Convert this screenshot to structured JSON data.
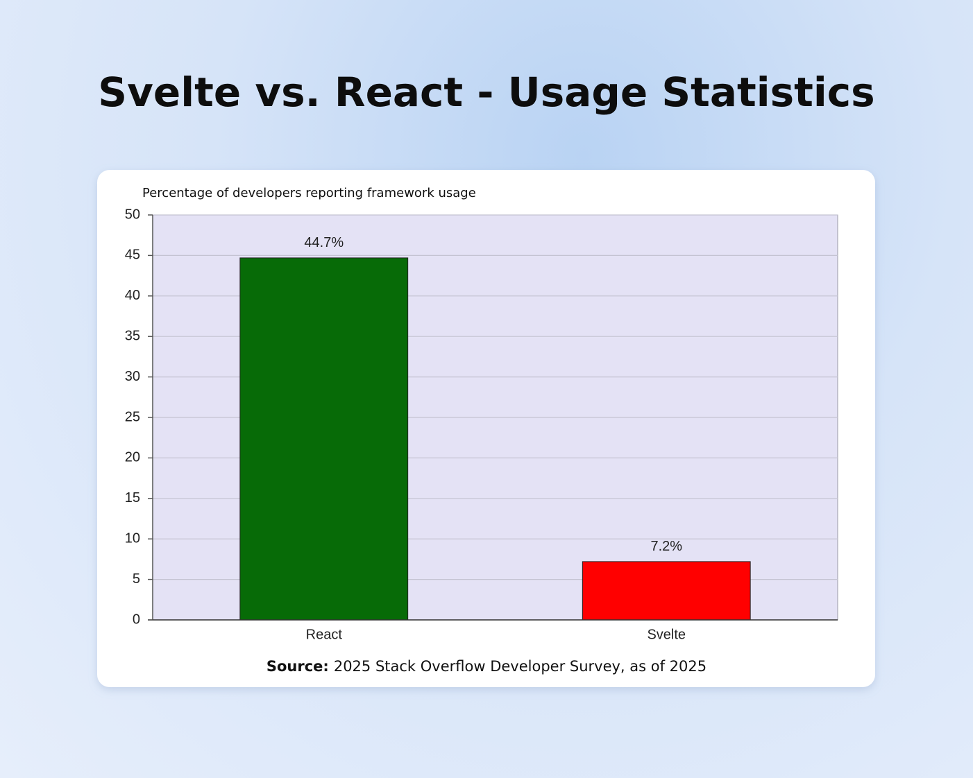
{
  "chart_data": {
    "type": "bar",
    "title": "Svelte vs. React - Usage Statistics",
    "y_label": "Percentage of developers reporting framework usage",
    "categories": [
      "React",
      "Svelte"
    ],
    "values": [
      44.7,
      7.2
    ],
    "value_labels": [
      "44.7%",
      "7.2%"
    ],
    "colors": [
      "#076b07",
      "#ff0000"
    ],
    "ylim": [
      0,
      50
    ],
    "yticks": [
      0,
      5,
      10,
      15,
      20,
      25,
      30,
      35,
      40,
      45,
      50
    ],
    "grid": true,
    "source_label": "Source:",
    "source": "2025 Stack Overflow Developer Survey, as of 2025"
  }
}
